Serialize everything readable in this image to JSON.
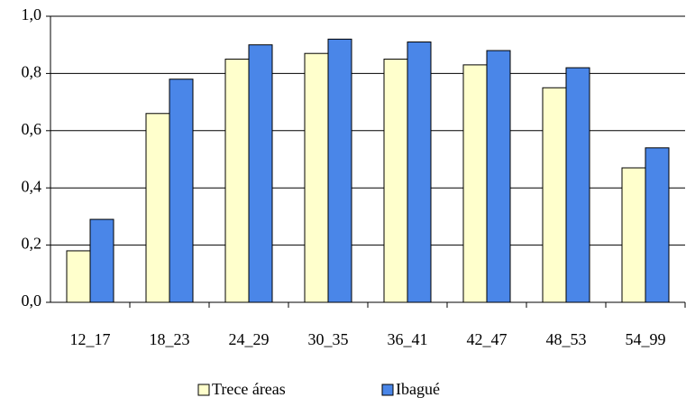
{
  "chart_data": {
    "type": "bar",
    "categories": [
      "12_17",
      "18_23",
      "24_29",
      "30_35",
      "36_41",
      "42_47",
      "48_53",
      "54_99"
    ],
    "series": [
      {
        "name": "Trece áreas",
        "color": "#ffffcc",
        "values": [
          0.18,
          0.66,
          0.85,
          0.87,
          0.85,
          0.83,
          0.75,
          0.47
        ]
      },
      {
        "name": "Ibagué",
        "color": "#4a86e8",
        "values": [
          0.29,
          0.78,
          0.9,
          0.92,
          0.91,
          0.88,
          0.82,
          0.54
        ]
      }
    ],
    "ylim": [
      0,
      1
    ],
    "yticks": [
      {
        "value": 0,
        "label": "0,0"
      },
      {
        "value": 0.2,
        "label": "0,2"
      },
      {
        "value": 0.4,
        "label": "0,4"
      },
      {
        "value": 0.6,
        "label": "0,6"
      },
      {
        "value": 0.8,
        "label": "0,8"
      },
      {
        "value": 1,
        "label": "1,0"
      }
    ],
    "grid": true,
    "legend": "bottom"
  }
}
